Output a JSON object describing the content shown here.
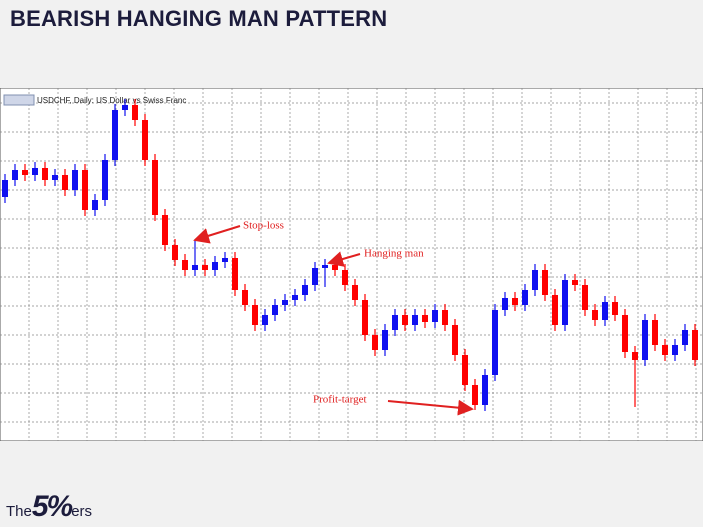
{
  "title": "BEARISH HANGING MAN PATTERN",
  "chart_data": {
    "type": "candlestick",
    "title": "USDCHF, Daily:  US Dollar vs Swiss Franc",
    "ylim": [
      0,
      345
    ],
    "up_color": "#1010f0",
    "down_color": "#ff0000",
    "grid": true,
    "open": [
      240,
      257,
      267,
      262,
      269,
      257,
      262,
      247,
      267,
      227,
      237,
      277,
      327,
      332,
      317,
      277,
      222,
      192,
      177,
      167,
      172,
      167,
      175,
      179,
      147,
      132,
      112,
      122,
      132,
      137,
      142,
      152,
      169,
      172,
      167,
      152,
      137,
      102,
      87,
      107,
      122,
      112,
      122,
      115,
      127,
      112,
      82,
      52,
      32,
      62,
      127,
      139,
      132,
      147,
      167,
      142,
      112,
      157,
      152,
      127,
      117,
      135,
      122,
      85,
      77,
      117,
      92,
      82,
      92,
      107
    ],
    "high": [
      263,
      273,
      273,
      275,
      275,
      268,
      268,
      273,
      273,
      243,
      283,
      333,
      338,
      338,
      323,
      283,
      228,
      198,
      183,
      197,
      178,
      181,
      185,
      185,
      153,
      138,
      128,
      138,
      143,
      148,
      158,
      175,
      178,
      178,
      173,
      158,
      143,
      108,
      113,
      128,
      128,
      128,
      128,
      133,
      133,
      118,
      88,
      58,
      68,
      133,
      145,
      145,
      153,
      173,
      173,
      148,
      163,
      163,
      158,
      133,
      141,
      141,
      128,
      91,
      123,
      123,
      98,
      98,
      113,
      113
    ],
    "low": [
      234,
      251,
      256,
      256,
      251,
      251,
      241,
      241,
      221,
      221,
      231,
      271,
      321,
      311,
      271,
      216,
      186,
      171,
      161,
      161,
      161,
      161,
      169,
      141,
      126,
      106,
      106,
      116,
      126,
      131,
      136,
      146,
      150,
      161,
      146,
      131,
      96,
      81,
      81,
      101,
      106,
      106,
      109,
      109,
      106,
      76,
      46,
      27,
      26,
      56,
      121,
      126,
      126,
      141,
      136,
      106,
      106,
      146,
      121,
      111,
      111,
      116,
      79,
      30,
      71,
      86,
      76,
      76,
      86,
      71
    ],
    "close": [
      257,
      267,
      262,
      269,
      257,
      262,
      247,
      267,
      227,
      237,
      277,
      327,
      332,
      317,
      277,
      222,
      192,
      177,
      167,
      172,
      167,
      175,
      179,
      147,
      132,
      112,
      122,
      132,
      137,
      142,
      152,
      169,
      172,
      167,
      152,
      137,
      102,
      87,
      107,
      122,
      112,
      122,
      115,
      127,
      112,
      82,
      52,
      32,
      62,
      127,
      139,
      132,
      147,
      167,
      142,
      112,
      157,
      152,
      127,
      117,
      135,
      122,
      85,
      77,
      117,
      92,
      82,
      92,
      107,
      77
    ],
    "annotations": [
      {
        "text": "Stop-loss",
        "index": 19,
        "color": "#e02020"
      },
      {
        "text": "Hanging man",
        "index": 32,
        "color": "#e02020"
      },
      {
        "text": "Profit-target",
        "index": 47,
        "color": "#e02020"
      }
    ]
  },
  "logo": {
    "prefix": "The",
    "mark": "5%",
    "suffix": "ers"
  }
}
